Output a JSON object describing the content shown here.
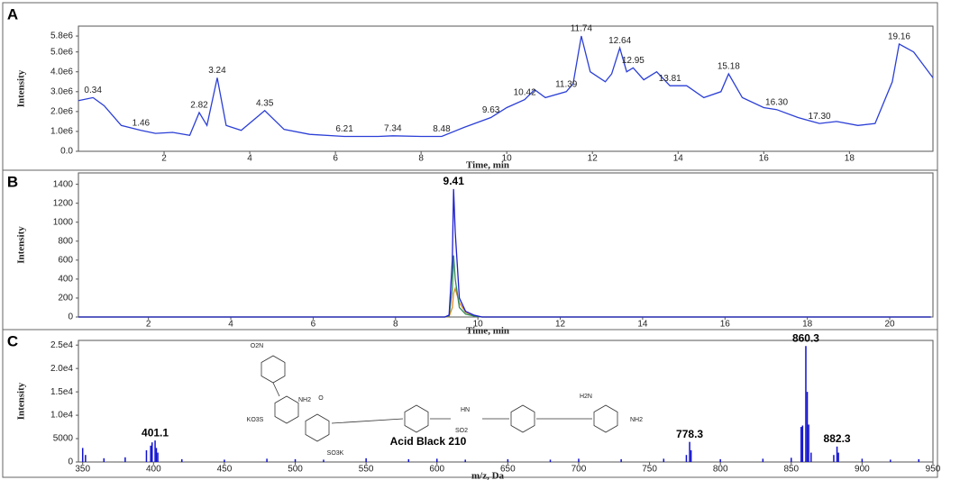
{
  "chart_data": [
    {
      "type": "line",
      "panel": "A",
      "x_label": "Time, min",
      "y_label": "Intensity",
      "xlim": [
        0,
        19.95
      ],
      "ylim": [
        0,
        6300000
      ],
      "xticks": [
        2,
        4,
        6,
        8,
        10,
        12,
        14,
        16,
        18
      ],
      "yticks": [
        {
          "value": 0,
          "label": "0.0"
        },
        {
          "value": 1000000,
          "label": "1.0e6"
        },
        {
          "value": 2000000,
          "label": "2.0e6"
        },
        {
          "value": 3000000,
          "label": "3.0e6"
        },
        {
          "value": 4000000,
          "label": "4.0e6"
        },
        {
          "value": 5000000,
          "label": "5.0e6"
        },
        {
          "value": 5800000,
          "label": "5.8e6"
        }
      ],
      "x": [
        0,
        0.34,
        0.6,
        1.0,
        1.46,
        1.8,
        2.2,
        2.6,
        2.82,
        3.0,
        3.24,
        3.45,
        3.8,
        4.35,
        4.8,
        5.4,
        6.21,
        7.0,
        7.34,
        8.0,
        8.48,
        9.0,
        9.63,
        10.0,
        10.42,
        10.65,
        10.9,
        11.39,
        11.55,
        11.74,
        11.95,
        12.3,
        12.45,
        12.64,
        12.8,
        12.95,
        13.2,
        13.5,
        13.81,
        14.2,
        14.6,
        15.0,
        15.18,
        15.5,
        16.0,
        16.3,
        16.8,
        17.3,
        17.7,
        18.2,
        18.6,
        19.0,
        19.16,
        19.5,
        19.95
      ],
      "series": [
        {
          "color": "#2b3fd6",
          "values": [
            2550000,
            2700000,
            2300000,
            1300000,
            1050000,
            900000,
            950000,
            800000,
            1950000,
            1300000,
            3700000,
            1300000,
            1050000,
            2050000,
            1100000,
            850000,
            750000,
            750000,
            780000,
            750000,
            750000,
            1200000,
            1700000,
            2200000,
            2600000,
            3100000,
            2700000,
            3000000,
            3400000,
            5800000,
            4000000,
            3500000,
            3900000,
            5200000,
            4000000,
            4200000,
            3600000,
            4000000,
            3300000,
            3300000,
            2700000,
            3000000,
            3900000,
            2700000,
            2200000,
            2100000,
            1700000,
            1400000,
            1500000,
            1300000,
            1400000,
            3500000,
            5400000,
            5000000,
            3700000
          ]
        }
      ],
      "annotations": [
        {
          "text": "0.34",
          "x": 0.34,
          "y": 2700000
        },
        {
          "text": "1.46",
          "x": 1.46,
          "y": 1050000
        },
        {
          "text": "2.82",
          "x": 2.82,
          "y": 1950000
        },
        {
          "text": "3.24",
          "x": 3.24,
          "y": 3700000
        },
        {
          "text": "4.35",
          "x": 4.35,
          "y": 2050000
        },
        {
          "text": "6.21",
          "x": 6.21,
          "y": 750000
        },
        {
          "text": "7.34",
          "x": 7.34,
          "y": 780000
        },
        {
          "text": "8.48",
          "x": 8.48,
          "y": 750000
        },
        {
          "text": "9.63",
          "x": 9.63,
          "y": 1700000
        },
        {
          "text": "10.42",
          "x": 10.42,
          "y": 2600000
        },
        {
          "text": "11.39",
          "x": 11.39,
          "y": 3000000
        },
        {
          "text": "11.74",
          "x": 11.74,
          "y": 5800000
        },
        {
          "text": "12.64",
          "x": 12.64,
          "y": 5200000
        },
        {
          "text": "12.95",
          "x": 12.95,
          "y": 4200000
        },
        {
          "text": "13.81",
          "x": 13.81,
          "y": 3300000
        },
        {
          "text": "15.18",
          "x": 15.18,
          "y": 3900000
        },
        {
          "text": "16.30",
          "x": 16.3,
          "y": 2100000
        },
        {
          "text": "17.30",
          "x": 17.3,
          "y": 1400000
        },
        {
          "text": "19.16",
          "x": 19.16,
          "y": 5400000
        }
      ]
    },
    {
      "type": "line",
      "panel": "B",
      "x_label": "Time, min",
      "y_label": "Intensity",
      "xlim": [
        0.3,
        21.05
      ],
      "ylim": [
        0,
        1520
      ],
      "xticks": [
        2,
        4,
        6,
        8,
        10,
        12,
        14,
        16,
        18,
        20
      ],
      "yticks": [
        0,
        200,
        400,
        600,
        800,
        1000,
        1200,
        1400
      ],
      "x": [
        0.3,
        9.2,
        9.3,
        9.38,
        9.41,
        9.45,
        9.55,
        9.7,
        9.9,
        10.1,
        21.0
      ],
      "series": [
        {
          "color": "#e08a1e",
          "values": [
            0,
            0,
            5,
            100,
            250,
            300,
            150,
            50,
            15,
            0,
            0
          ]
        },
        {
          "color": "#2e8b57",
          "values": [
            0,
            0,
            10,
            300,
            650,
            400,
            100,
            30,
            10,
            0,
            0
          ]
        },
        {
          "color": "#1f1fd0",
          "values": [
            0,
            0,
            20,
            600,
            1350,
            900,
            200,
            60,
            20,
            0,
            0
          ]
        }
      ],
      "annotations": [
        {
          "text": "9.41",
          "x": 9.41,
          "y": 1350
        }
      ]
    },
    {
      "type": "stem",
      "panel": "C",
      "x_label": "m/z, Da",
      "y_label": "Intensity",
      "xlim": [
        347,
        950
      ],
      "ylim": [
        0,
        26000
      ],
      "xticks": [
        350,
        400,
        450,
        500,
        550,
        600,
        650,
        700,
        750,
        800,
        850,
        900,
        950
      ],
      "yticks": [
        0,
        5000,
        {
          "value": 10000,
          "label": "1.0e4"
        },
        {
          "value": 15000,
          "label": "1.5e4"
        },
        {
          "value": 20000,
          "label": "2.0e4"
        },
        {
          "value": 25000,
          "label": "2.5e4"
        }
      ],
      "x": [
        350,
        352,
        365,
        380,
        395,
        398,
        399,
        401.1,
        402,
        403,
        420,
        450,
        480,
        500,
        520,
        550,
        580,
        600,
        620,
        650,
        680,
        700,
        730,
        760,
        776,
        778.3,
        779.3,
        800,
        830,
        850,
        857,
        858,
        860.3,
        861.3,
        862.3,
        864,
        880,
        882.3,
        883.3,
        900,
        920,
        940
      ],
      "series": [
        {
          "color": "#1010d0",
          "values": [
            3000,
            1500,
            800,
            1000,
            2500,
            3500,
            4200,
            4600,
            3000,
            2000,
            600,
            500,
            700,
            600,
            500,
            800,
            600,
            700,
            500,
            600,
            500,
            700,
            600,
            700,
            1500,
            4300,
            2500,
            600,
            700,
            900,
            7500,
            7800,
            24800,
            15000,
            8000,
            2000,
            1500,
            3300,
            2000,
            700,
            500,
            600
          ]
        }
      ],
      "annotations": [
        {
          "text": "401.1",
          "x": 401.1,
          "y": 4600
        },
        {
          "text": "778.3",
          "x": 778.3,
          "y": 4300
        },
        {
          "text": "860.3",
          "x": 860.3,
          "y": 24800
        },
        {
          "text": "882.3",
          "x": 882.3,
          "y": 3300
        }
      ],
      "compound": {
        "name": "Acid Black 210",
        "labels": [
          "O2N",
          "NH2",
          "O",
          "KO3S",
          "SO3K",
          "HN",
          "SO2",
          "H2N",
          "NH2"
        ]
      }
    }
  ]
}
